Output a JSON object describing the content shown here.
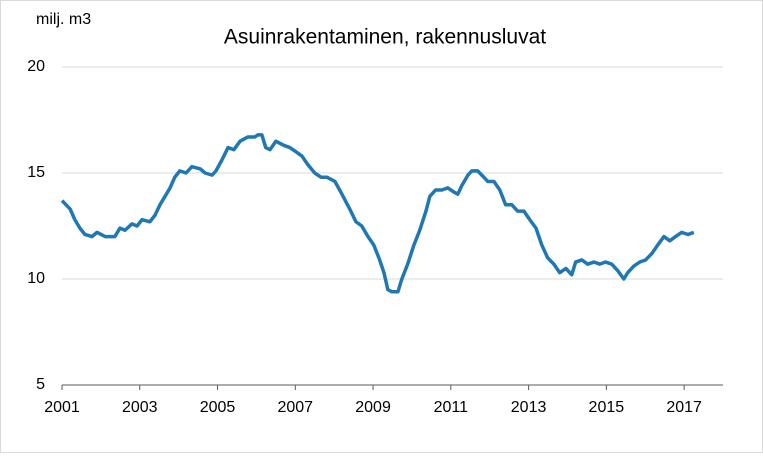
{
  "chart_data": {
    "type": "line",
    "title": "Asuinrakentaminen, rakennusluvat",
    "y_label": "milj. m3",
    "x": [
      2001.0,
      2001.21,
      2001.33,
      2001.46,
      2001.59,
      2001.77,
      2001.9,
      2002.11,
      2002.36,
      2002.49,
      2002.62,
      2002.8,
      2002.93,
      2003.06,
      2003.26,
      2003.39,
      2003.52,
      2003.65,
      2003.78,
      2003.9,
      2004.03,
      2004.19,
      2004.34,
      2004.55,
      2004.68,
      2004.86,
      2004.96,
      2005.11,
      2005.27,
      2005.42,
      2005.58,
      2005.78,
      2005.96,
      2006.04,
      2006.14,
      2006.24,
      2006.35,
      2006.5,
      2006.71,
      2006.86,
      2007.02,
      2007.17,
      2007.32,
      2007.5,
      2007.66,
      2007.81,
      2008.02,
      2008.2,
      2008.4,
      2008.56,
      2008.71,
      2008.87,
      2009.02,
      2009.17,
      2009.28,
      2009.38,
      2009.48,
      2009.64,
      2009.74,
      2009.89,
      2010.05,
      2010.2,
      2010.36,
      2010.46,
      2010.61,
      2010.77,
      2010.92,
      2011.08,
      2011.18,
      2011.28,
      2011.44,
      2011.54,
      2011.69,
      2011.85,
      2011.95,
      2012.11,
      2012.26,
      2012.41,
      2012.57,
      2012.72,
      2012.88,
      2013.03,
      2013.19,
      2013.34,
      2013.49,
      2013.65,
      2013.8,
      2013.96,
      2014.11,
      2014.21,
      2014.37,
      2014.52,
      2014.68,
      2014.83,
      2014.98,
      2015.14,
      2015.29,
      2015.45,
      2015.55,
      2015.7,
      2015.86,
      2016.01,
      2016.17,
      2016.32,
      2016.48,
      2016.63,
      2016.78,
      2016.94,
      2017.1,
      2017.25
    ],
    "series": [
      {
        "color": "#1f77b4",
        "values": [
          13.7,
          13.3,
          12.8,
          12.4,
          12.1,
          12.0,
          12.2,
          12.0,
          12.0,
          12.4,
          12.3,
          12.6,
          12.5,
          12.8,
          12.7,
          13.0,
          13.5,
          13.9,
          14.3,
          14.8,
          15.1,
          15.0,
          15.3,
          15.2,
          15.0,
          14.9,
          15.1,
          15.6,
          16.2,
          16.1,
          16.5,
          16.7,
          16.7,
          16.8,
          16.8,
          16.2,
          16.1,
          16.5,
          16.3,
          16.2,
          16.0,
          15.8,
          15.4,
          15.0,
          14.8,
          14.8,
          14.6,
          14.0,
          13.3,
          12.7,
          12.5,
          12.0,
          11.6,
          10.9,
          10.3,
          9.5,
          9.4,
          9.4,
          10.0,
          10.7,
          11.6,
          12.3,
          13.2,
          13.9,
          14.2,
          14.2,
          14.3,
          14.1,
          14.0,
          14.4,
          14.9,
          15.1,
          15.1,
          14.8,
          14.6,
          14.6,
          14.2,
          13.5,
          13.5,
          13.2,
          13.2,
          12.8,
          12.4,
          11.6,
          11.0,
          10.7,
          10.3,
          10.5,
          10.2,
          10.8,
          10.9,
          10.7,
          10.8,
          10.7,
          10.8,
          10.7,
          10.4,
          10.0,
          10.3,
          10.6,
          10.8,
          10.9,
          11.2,
          11.6,
          12.0,
          11.8,
          12.0,
          12.2,
          12.1,
          12.2
        ]
      }
    ],
    "xlim": [
      2001,
      2018
    ],
    "xticks": [
      2001,
      2003,
      2005,
      2007,
      2009,
      2011,
      2013,
      2015,
      2017
    ],
    "ylim": [
      5,
      20
    ],
    "yticks": [
      5,
      10,
      15,
      20
    ],
    "grid": true
  }
}
